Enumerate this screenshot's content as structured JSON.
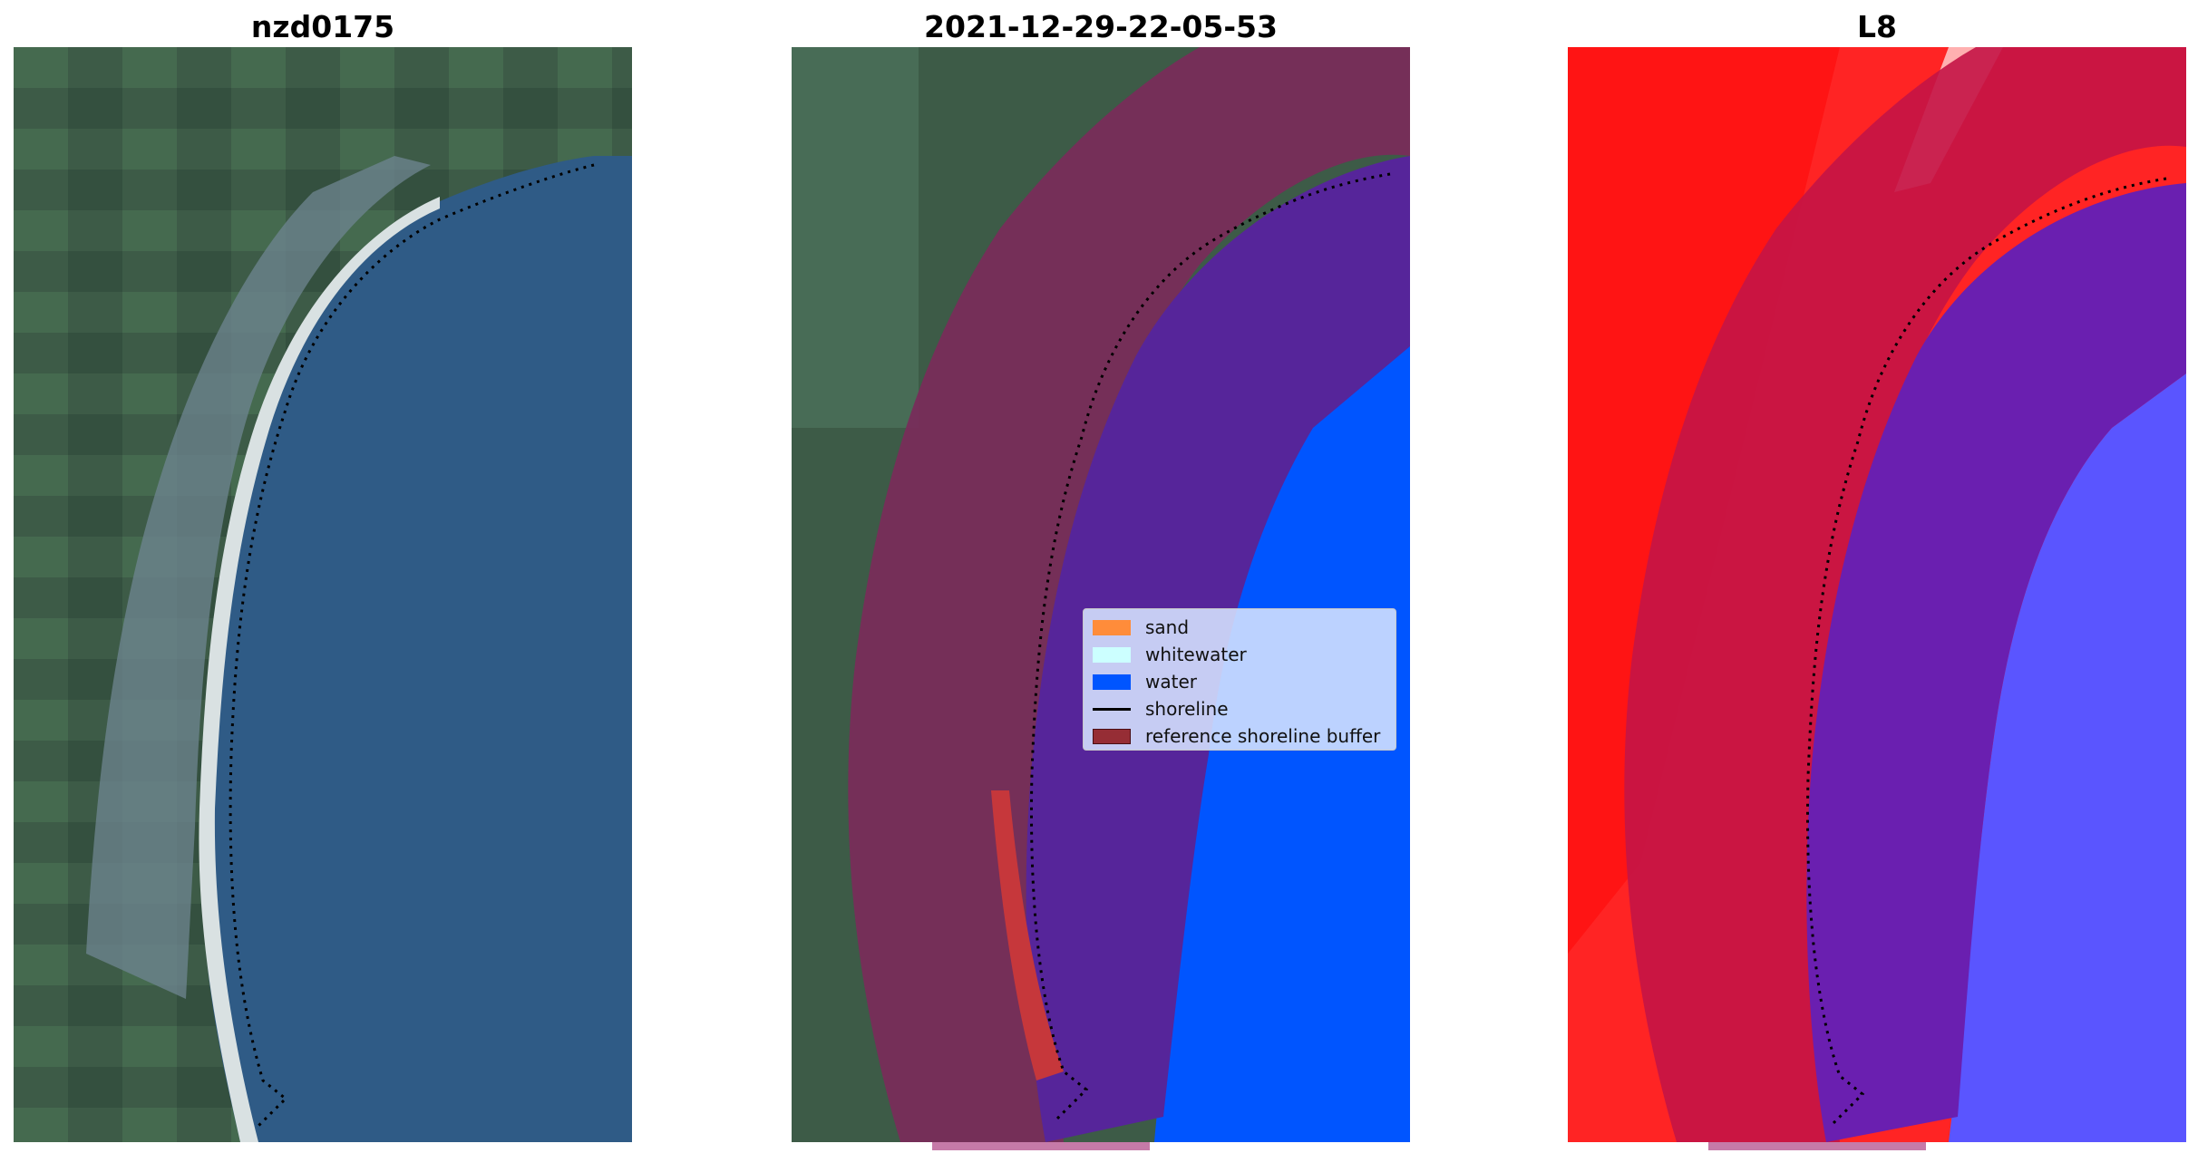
{
  "panels": [
    {
      "title": "nzd0175",
      "kind": "true-color"
    },
    {
      "title": "2021-12-29-22-05-53",
      "kind": "classification"
    },
    {
      "title": "L8",
      "kind": "index-overlay"
    }
  ],
  "legend": {
    "items": [
      {
        "label": "sand",
        "color": "#ff8c3a",
        "shape": "patch"
      },
      {
        "label": "whitewater",
        "color": "#ccffff",
        "shape": "patch"
      },
      {
        "label": "water",
        "color": "#0055ff",
        "shape": "patch"
      },
      {
        "label": "shoreline",
        "color": "#000000",
        "shape": "line"
      },
      {
        "label": "reference shoreline buffer",
        "color": "#962d35",
        "shape": "patch"
      }
    ]
  },
  "colors": {
    "ocean": "#2e5a86",
    "land": "#3b5a48",
    "beach": "#d8dfe0",
    "water_class": "#0055ff",
    "water_buffer": "#56259a",
    "buffer": "#7a2b5a",
    "index_red": "#ff1f1f",
    "index_blue": "#5a55ff",
    "shoreline": "#000000"
  }
}
